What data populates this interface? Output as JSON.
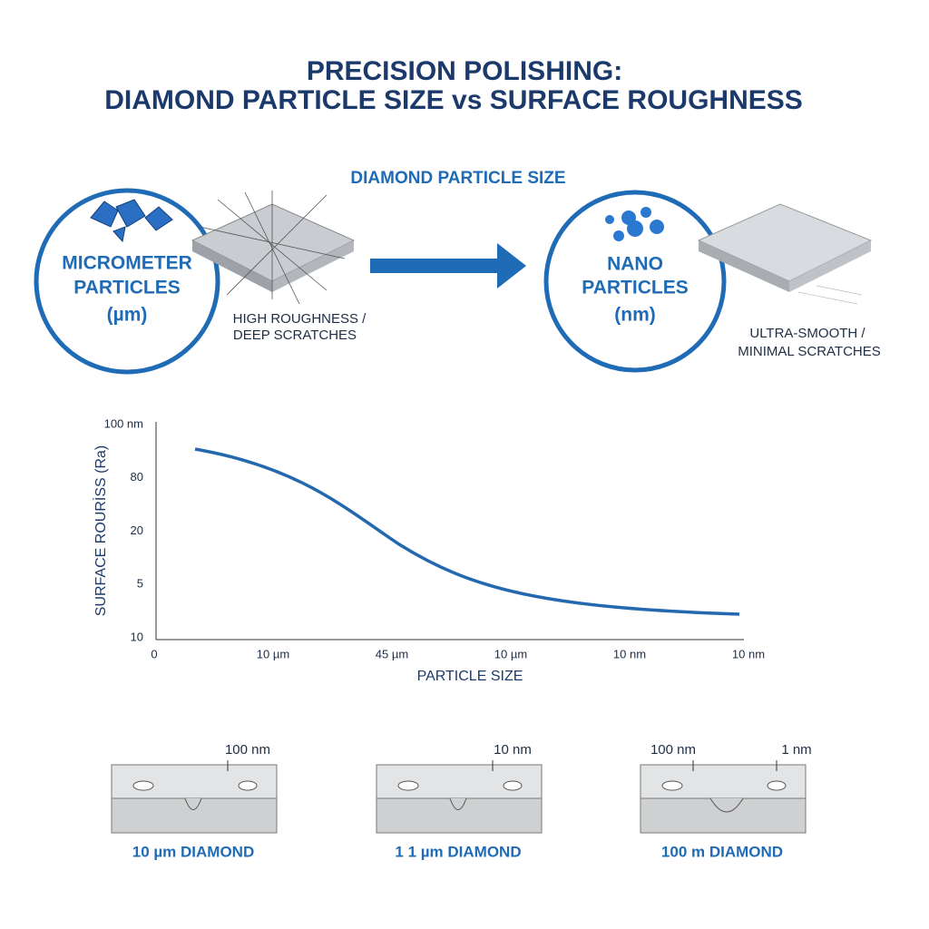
{
  "header": {
    "title": [
      "PRECISION POLISHING:",
      "DIAMOND PARTICLE SIZE vs SURFACE ROUGHNESS"
    ]
  },
  "process": {
    "heading": "DIAMOND PARTICLE SIZE",
    "left": {
      "label": [
        "MICROMETER",
        "PARTICLES",
        "(µm)"
      ],
      "caption": [
        "HIGH ROUGHNESS /",
        "DEEP SCRATCHES"
      ]
    },
    "right": {
      "label": [
        "NANO",
        "PARTICLES",
        "(nm)"
      ],
      "caption": [
        "ULTRA-SMOOTH /",
        "MINIMAL SCRATCHES"
      ]
    }
  },
  "graph": {
    "y_label": "SURFACE ROURİSS (Ra)",
    "x_label": "PARTICLE SIZE",
    "y_ticks": [
      "100 nm",
      "80",
      "20",
      "5",
      "10"
    ],
    "x_ticks": [
      "0",
      "10 µm",
      "45 µm",
      "10 µm",
      "10 nm",
      "10 nm"
    ]
  },
  "panels": [
    {
      "marks": [
        "100 nm"
      ],
      "caption": "10 µm DIAMOND"
    },
    {
      "marks": [
        "10 nm"
      ],
      "caption": "1 1 µm DIAMOND"
    },
    {
      "marks": [
        "100 nm",
        "1 nm"
      ],
      "caption": "100 m DIAMOND"
    }
  ]
}
